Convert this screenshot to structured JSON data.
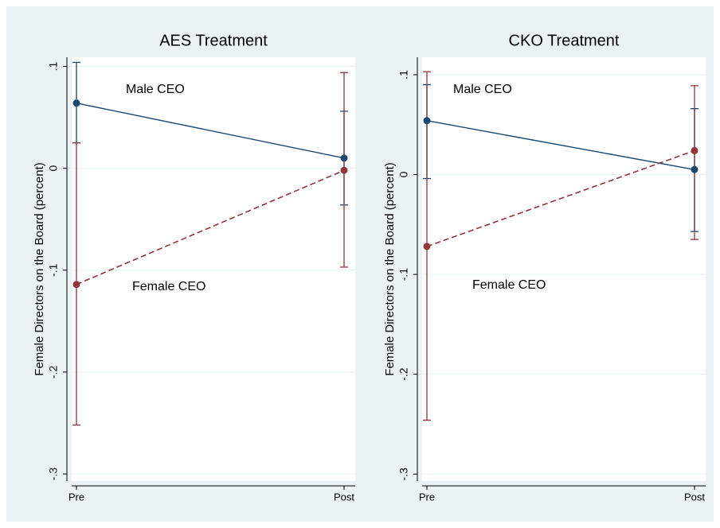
{
  "chart_data": [
    {
      "type": "line",
      "title": "AES Treatment",
      "y_label": "Female Directors on the Board (percent)",
      "categories": [
        "Pre",
        "Post"
      ],
      "series": [
        {
          "name": "Male CEO",
          "color": "#1a476f",
          "line_style": "solid",
          "values": [
            0.064,
            0.01
          ],
          "ci_low": [
            0.025,
            -0.036
          ],
          "ci_high": [
            0.104,
            0.056
          ]
        },
        {
          "name": "Female CEO",
          "color": "#90353b",
          "line_style": "dashed",
          "values": [
            -0.114,
            -0.002
          ],
          "ci_low": [
            -0.252,
            -0.097
          ],
          "ci_high": [
            0.025,
            0.094
          ]
        }
      ],
      "ylim": [
        -0.307,
        0.109
      ],
      "yticks": [
        {
          "value": -0.3,
          "label": "-.3"
        },
        {
          "value": -0.2,
          "label": "-.2"
        },
        {
          "value": -0.1,
          "label": "-.1"
        },
        0,
        {
          "value": 0.1,
          "label": ".1"
        }
      ],
      "grid": true
    },
    {
      "type": "line",
      "title": "CKO Treatment",
      "y_label": "Female Directors on the Board (percent)",
      "categories": [
        "Pre",
        "Post"
      ],
      "series": [
        {
          "name": "Male CEO",
          "color": "#1a476f",
          "line_style": "solid",
          "values": [
            0.054,
            0.005
          ],
          "ci_low": [
            -0.004,
            -0.057
          ],
          "ci_high": [
            0.09,
            0.066
          ]
        },
        {
          "name": "Female CEO",
          "color": "#90353b",
          "line_style": "dashed",
          "values": [
            -0.072,
            0.024
          ],
          "ci_low": [
            -0.246,
            -0.065
          ],
          "ci_high": [
            0.103,
            0.089
          ]
        }
      ],
      "ylim": [
        -0.307,
        0.1175
      ],
      "yticks": [
        {
          "value": -0.3,
          "label": "-.3"
        },
        {
          "value": -0.2,
          "label": "-.2"
        },
        {
          "value": -0.1,
          "label": "-.1"
        },
        0,
        {
          "value": 0.1,
          "label": ".1"
        }
      ],
      "grid": true
    }
  ]
}
